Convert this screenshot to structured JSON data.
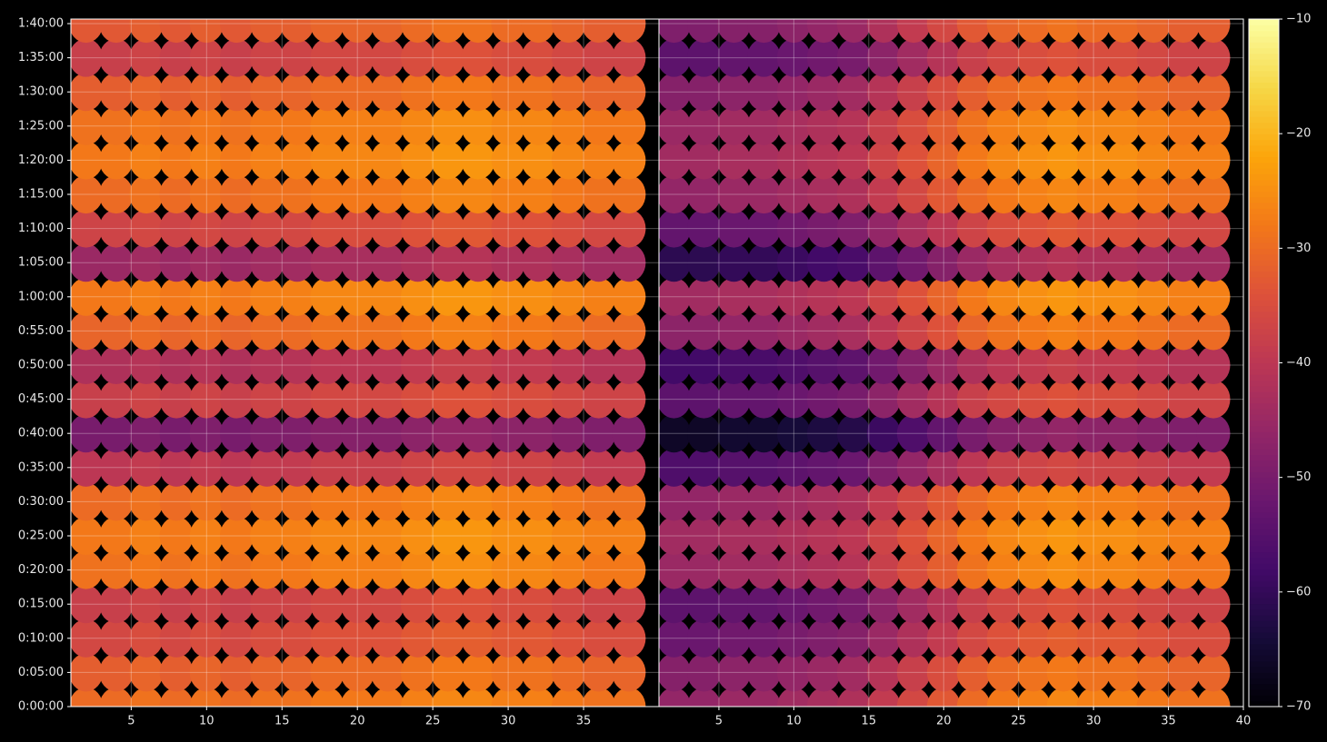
{
  "chart_data": {
    "type": "heatmap",
    "cmap": "inferno",
    "grid": true,
    "x": [
      2,
      4,
      6,
      8,
      10,
      12,
      14,
      16,
      18,
      20,
      22,
      24,
      26,
      28,
      30,
      32,
      34,
      36,
      38
    ],
    "y": [
      0,
      300,
      600,
      900,
      1200,
      1500,
      1800,
      2100,
      2400,
      2700,
      3000,
      3300,
      3600,
      3900,
      4200,
      4500,
      4800,
      5100,
      5400,
      5700,
      6000
    ],
    "xlim": [
      1,
      40
    ],
    "ylim": [
      0,
      6040
    ],
    "yticks": [
      {
        "value": 0,
        "label": "0:00:00"
      },
      {
        "value": 300,
        "label": "0:05:00"
      },
      {
        "value": 600,
        "label": "0:10:00"
      },
      {
        "value": 900,
        "label": "0:15:00"
      },
      {
        "value": 1200,
        "label": "0:20:00"
      },
      {
        "value": 1500,
        "label": "0:25:00"
      },
      {
        "value": 1800,
        "label": "0:30:00"
      },
      {
        "value": 2100,
        "label": "0:35:00"
      },
      {
        "value": 2400,
        "label": "0:40:00"
      },
      {
        "value": 2700,
        "label": "0:45:00"
      },
      {
        "value": 3000,
        "label": "0:50:00"
      },
      {
        "value": 3300,
        "label": "0:55:00"
      },
      {
        "value": 3600,
        "label": "1:00:00"
      },
      {
        "value": 3900,
        "label": "1:05:00"
      },
      {
        "value": 4200,
        "label": "1:10:00"
      },
      {
        "value": 4500,
        "label": "1:15:00"
      },
      {
        "value": 4800,
        "label": "1:20:00"
      },
      {
        "value": 5100,
        "label": "1:25:00"
      },
      {
        "value": 5400,
        "label": "1:30:00"
      },
      {
        "value": 5700,
        "label": "1:35:00"
      },
      {
        "value": 6000,
        "label": "1:40:00"
      }
    ],
    "colorbar": {
      "lim": [
        -70,
        -10
      ],
      "ticks": [
        {
          "value": -70,
          "label": "−70"
        },
        {
          "value": -60,
          "label": "−60"
        },
        {
          "value": -50,
          "label": "−50"
        },
        {
          "value": -40,
          "label": "−40"
        },
        {
          "value": -30,
          "label": "−30"
        },
        {
          "value": -20,
          "label": "−20"
        },
        {
          "value": -10,
          "label": "−10"
        }
      ]
    },
    "panels": [
      {
        "xticks": [
          5,
          10,
          15,
          20,
          25,
          30,
          35
        ],
        "values": [
          [
            -30,
            -30,
            -29,
            -30,
            -29,
            -30,
            -29,
            -29,
            -28,
            -28,
            -28,
            -27,
            -26,
            -26,
            -27,
            -27,
            -28,
            -29,
            -29
          ],
          [
            -32,
            -32,
            -31,
            -32,
            -31,
            -32,
            -31,
            -31,
            -30,
            -30,
            -30,
            -29,
            -28,
            -28,
            -29,
            -29,
            -30,
            -31,
            -31
          ],
          [
            -36,
            -36,
            -35,
            -36,
            -35,
            -36,
            -35,
            -35,
            -34,
            -34,
            -34,
            -33,
            -32,
            -32,
            -33,
            -33,
            -34,
            -35,
            -35
          ],
          [
            -38,
            -38,
            -37,
            -38,
            -37,
            -38,
            -37,
            -37,
            -36,
            -36,
            -36,
            -35,
            -34,
            -34,
            -35,
            -35,
            -36,
            -37,
            -37
          ],
          [
            -29,
            -29,
            -28,
            -29,
            -28,
            -29,
            -28,
            -28,
            -27,
            -27,
            -27,
            -26,
            -25,
            -25,
            -26,
            -26,
            -27,
            -28,
            -28
          ],
          [
            -28,
            -28,
            -27,
            -28,
            -27,
            -28,
            -27,
            -27,
            -26,
            -26,
            -26,
            -25,
            -24,
            -24,
            -25,
            -25,
            -26,
            -27,
            -27
          ],
          [
            -30,
            -30,
            -29,
            -30,
            -29,
            -30,
            -29,
            -29,
            -28,
            -28,
            -28,
            -27,
            -26,
            -26,
            -27,
            -27,
            -28,
            -29,
            -29
          ],
          [
            -40,
            -40,
            -39,
            -40,
            -39,
            -40,
            -39,
            -39,
            -38,
            -38,
            -38,
            -37,
            -36,
            -36,
            -37,
            -37,
            -38,
            -39,
            -39
          ],
          [
            -50,
            -50,
            -49,
            -50,
            -49,
            -50,
            -49,
            -49,
            -48,
            -48,
            -48,
            -47,
            -46,
            -46,
            -47,
            -47,
            -48,
            -49,
            -49
          ],
          [
            -38,
            -38,
            -37,
            -38,
            -37,
            -38,
            -37,
            -37,
            -36,
            -36,
            -36,
            -35,
            -34,
            -34,
            -35,
            -35,
            -36,
            -37,
            -37
          ],
          [
            -42,
            -42,
            -41,
            -42,
            -41,
            -42,
            -41,
            -41,
            -40,
            -40,
            -40,
            -39,
            -38,
            -38,
            -39,
            -39,
            -40,
            -41,
            -41
          ],
          [
            -31,
            -31,
            -30,
            -31,
            -30,
            -31,
            -30,
            -30,
            -29,
            -29,
            -29,
            -28,
            -27,
            -27,
            -28,
            -28,
            -29,
            -30,
            -30
          ],
          [
            -28,
            -28,
            -27,
            -28,
            -27,
            -28,
            -27,
            -27,
            -26,
            -26,
            -26,
            -25,
            -24,
            -24,
            -25,
            -25,
            -26,
            -27,
            -27
          ],
          [
            -45,
            -45,
            -44,
            -45,
            -44,
            -45,
            -44,
            -44,
            -43,
            -43,
            -43,
            -42,
            -41,
            -41,
            -42,
            -42,
            -43,
            -44,
            -44
          ],
          [
            -37,
            -37,
            -36,
            -37,
            -36,
            -37,
            -36,
            -36,
            -35,
            -35,
            -35,
            -34,
            -33,
            -33,
            -34,
            -34,
            -35,
            -36,
            -36
          ],
          [
            -30,
            -30,
            -29,
            -30,
            -29,
            -30,
            -29,
            -29,
            -28,
            -28,
            -28,
            -27,
            -26,
            -26,
            -27,
            -27,
            -28,
            -29,
            -29
          ],
          [
            -28,
            -28,
            -27,
            -28,
            -27,
            -28,
            -27,
            -27,
            -26,
            -26,
            -26,
            -25,
            -24,
            -24,
            -25,
            -25,
            -26,
            -27,
            -27
          ],
          [
            -29,
            -29,
            -28,
            -29,
            -28,
            -29,
            -28,
            -28,
            -27,
            -27,
            -27,
            -26,
            -25,
            -25,
            -26,
            -26,
            -27,
            -28,
            -28
          ],
          [
            -32,
            -32,
            -31,
            -32,
            -31,
            -32,
            -31,
            -31,
            -30,
            -30,
            -30,
            -29,
            -28,
            -28,
            -29,
            -29,
            -30,
            -31,
            -31
          ],
          [
            -38,
            -38,
            -37,
            -38,
            -37,
            -38,
            -37,
            -37,
            -36,
            -36,
            -36,
            -35,
            -34,
            -34,
            -35,
            -35,
            -36,
            -37,
            -37
          ],
          [
            -33,
            -33,
            -32,
            -33,
            -32,
            -33,
            -32,
            -32,
            -31,
            -31,
            -31,
            -30,
            -29,
            -29,
            -30,
            -30,
            -31,
            -32,
            -32
          ]
        ]
      },
      {
        "xticks": [
          5,
          10,
          15,
          20,
          25,
          30,
          35,
          40
        ],
        "values": [
          [
            -46,
            -46,
            -45,
            -45,
            -44,
            -43,
            -42,
            -39,
            -36,
            -33,
            -30,
            -28,
            -27,
            -26,
            -27,
            -27,
            -28,
            -29,
            -29
          ],
          [
            -48,
            -48,
            -47,
            -47,
            -46,
            -45,
            -44,
            -41,
            -38,
            -35,
            -32,
            -30,
            -29,
            -28,
            -29,
            -29,
            -30,
            -31,
            -31
          ],
          [
            -52,
            -52,
            -51,
            -51,
            -50,
            -49,
            -48,
            -45,
            -42,
            -39,
            -36,
            -34,
            -33,
            -32,
            -33,
            -33,
            -34,
            -35,
            -35
          ],
          [
            -54,
            -54,
            -53,
            -53,
            -52,
            -51,
            -50,
            -47,
            -44,
            -41,
            -38,
            -36,
            -35,
            -34,
            -35,
            -35,
            -36,
            -37,
            -37
          ],
          [
            -45,
            -45,
            -44,
            -44,
            -43,
            -42,
            -41,
            -38,
            -35,
            -32,
            -29,
            -27,
            -26,
            -25,
            -26,
            -26,
            -27,
            -28,
            -28
          ],
          [
            -44,
            -44,
            -43,
            -43,
            -42,
            -41,
            -40,
            -37,
            -34,
            -31,
            -28,
            -26,
            -25,
            -24,
            -25,
            -25,
            -26,
            -27,
            -27
          ],
          [
            -46,
            -46,
            -45,
            -45,
            -44,
            -43,
            -42,
            -39,
            -36,
            -33,
            -30,
            -28,
            -27,
            -26,
            -27,
            -27,
            -28,
            -29,
            -29
          ],
          [
            -56,
            -56,
            -55,
            -55,
            -54,
            -53,
            -52,
            -49,
            -46,
            -43,
            -40,
            -38,
            -37,
            -36,
            -37,
            -37,
            -38,
            -39,
            -39
          ],
          [
            -66,
            -66,
            -65,
            -65,
            -64,
            -63,
            -62,
            -59,
            -56,
            -53,
            -50,
            -48,
            -47,
            -46,
            -47,
            -47,
            -48,
            -49,
            -49
          ],
          [
            -54,
            -54,
            -53,
            -53,
            -52,
            -51,
            -50,
            -47,
            -44,
            -41,
            -38,
            -36,
            -35,
            -34,
            -35,
            -35,
            -36,
            -37,
            -37
          ],
          [
            -58,
            -58,
            -57,
            -57,
            -56,
            -55,
            -54,
            -51,
            -48,
            -45,
            -42,
            -40,
            -39,
            -38,
            -39,
            -39,
            -40,
            -41,
            -41
          ],
          [
            -47,
            -47,
            -46,
            -46,
            -45,
            -44,
            -43,
            -40,
            -37,
            -34,
            -31,
            -29,
            -28,
            -27,
            -28,
            -28,
            -29,
            -30,
            -30
          ],
          [
            -44,
            -44,
            -43,
            -43,
            -42,
            -41,
            -40,
            -37,
            -34,
            -31,
            -28,
            -26,
            -25,
            -24,
            -25,
            -25,
            -26,
            -27,
            -27
          ],
          [
            -61,
            -61,
            -60,
            -60,
            -59,
            -58,
            -57,
            -54,
            -51,
            -48,
            -45,
            -43,
            -42,
            -41,
            -42,
            -42,
            -43,
            -44,
            -44
          ],
          [
            -53,
            -53,
            -52,
            -52,
            -51,
            -50,
            -49,
            -46,
            -43,
            -40,
            -37,
            -35,
            -34,
            -33,
            -34,
            -34,
            -35,
            -36,
            -36
          ],
          [
            -46,
            -46,
            -45,
            -45,
            -44,
            -43,
            -42,
            -39,
            -36,
            -33,
            -30,
            -28,
            -27,
            -26,
            -27,
            -27,
            -28,
            -29,
            -29
          ],
          [
            -44,
            -44,
            -43,
            -43,
            -42,
            -41,
            -40,
            -37,
            -34,
            -31,
            -28,
            -26,
            -25,
            -24,
            -25,
            -25,
            -26,
            -27,
            -27
          ],
          [
            -45,
            -45,
            -44,
            -44,
            -43,
            -42,
            -41,
            -38,
            -35,
            -32,
            -29,
            -27,
            -26,
            -25,
            -26,
            -26,
            -27,
            -28,
            -28
          ],
          [
            -48,
            -48,
            -47,
            -47,
            -46,
            -45,
            -44,
            -41,
            -38,
            -35,
            -32,
            -30,
            -29,
            -28,
            -29,
            -29,
            -30,
            -31,
            -31
          ],
          [
            -54,
            -54,
            -53,
            -53,
            -52,
            -51,
            -50,
            -47,
            -44,
            -41,
            -38,
            -36,
            -35,
            -34,
            -35,
            -35,
            -36,
            -37,
            -37
          ],
          [
            -49,
            -49,
            -48,
            -48,
            -47,
            -46,
            -45,
            -42,
            -39,
            -36,
            -33,
            -31,
            -30,
            -29,
            -30,
            -30,
            -31,
            -32,
            -32
          ]
        ]
      }
    ]
  }
}
